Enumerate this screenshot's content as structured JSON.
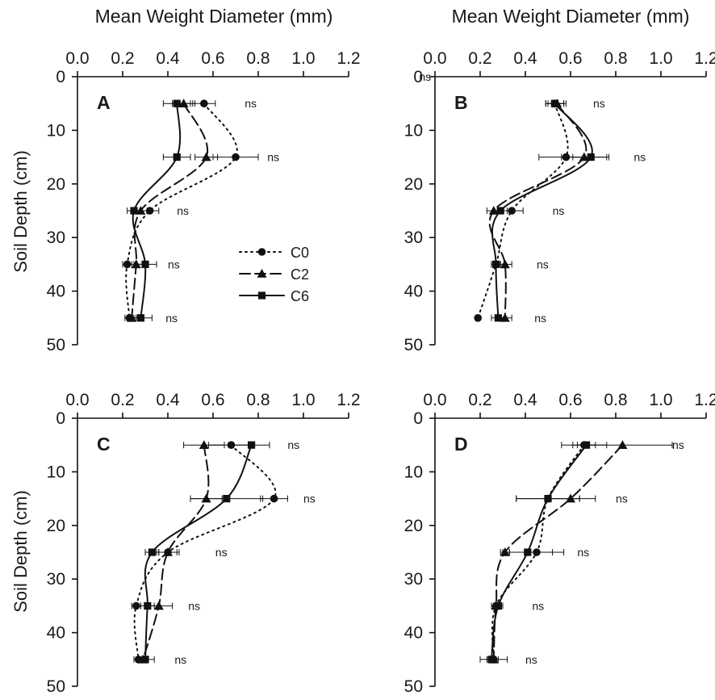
{
  "figure": {
    "x_axis_title": "Mean Weight Diameter (mm)",
    "y_axis_title": "Soil Depth (cm)",
    "legend": [
      "C0",
      "C2",
      "C6"
    ]
  },
  "chart_data": [
    {
      "type": "line",
      "panel": "A",
      "xlabel": "Mean Weight Diameter (mm)",
      "ylabel": "Soil Depth (cm)",
      "xlim": [
        0,
        1.2
      ],
      "ylim": [
        0,
        50
      ],
      "x_ticks": [
        "0.0",
        "0.2",
        "0.4",
        "0.6",
        "0.8",
        "1.0",
        "1.2"
      ],
      "y_ticks": [
        "0",
        "10",
        "20",
        "30",
        "40",
        "50"
      ],
      "depths": [
        5,
        15,
        25,
        35,
        45
      ],
      "series": [
        {
          "name": "C0",
          "values": [
            0.56,
            0.7,
            0.32,
            0.22,
            0.23
          ],
          "errors": [
            0.05,
            0.1,
            0.04,
            0.02,
            0.02
          ]
        },
        {
          "name": "C2",
          "values": [
            0.47,
            0.57,
            0.28,
            0.26,
            0.24
          ],
          "errors": [
            0.05,
            0.05,
            0.03,
            0.03,
            0.02
          ]
        },
        {
          "name": "C6",
          "values": [
            0.44,
            0.44,
            0.25,
            0.3,
            0.28
          ],
          "errors": [
            0.06,
            0.06,
            0.03,
            0.05,
            0.05
          ]
        }
      ],
      "annotations": [
        {
          "depth": 5,
          "x": 0.74,
          "text": "ns"
        },
        {
          "depth": 15,
          "x": 0.84,
          "text": "ns"
        },
        {
          "depth": 25,
          "x": 0.44,
          "text": "ns"
        },
        {
          "depth": 35,
          "x": 0.4,
          "text": "ns"
        },
        {
          "depth": 45,
          "x": 0.39,
          "text": "ns"
        }
      ]
    },
    {
      "type": "line",
      "panel": "B",
      "xlabel": "Mean Weight Diameter (mm)",
      "ylabel": "",
      "xlim": [
        0,
        1.2
      ],
      "ylim": [
        0,
        50
      ],
      "x_ticks": [
        "0.0",
        "0.2",
        "0.4",
        "0.6",
        "0.8",
        "1.0",
        "1.2"
      ],
      "y_ticks": [
        "0",
        "10",
        "20",
        "30",
        "40",
        "50"
      ],
      "depths": [
        5,
        15,
        25,
        35,
        45
      ],
      "series": [
        {
          "name": "C0",
          "values": [
            0.53,
            0.58,
            0.34,
            0.27,
            0.19
          ],
          "errors": [
            0.04,
            0.12,
            0.05,
            0.02,
            0.01
          ]
        },
        {
          "name": "C2",
          "values": [
            0.54,
            0.66,
            0.26,
            0.31,
            0.31
          ],
          "errors": [
            0.04,
            0.1,
            0.03,
            0.03,
            0.03
          ]
        },
        {
          "name": "C6",
          "values": [
            0.53,
            0.69,
            0.29,
            0.27,
            0.28
          ],
          "errors": [
            0.04,
            0.08,
            0.03,
            0.02,
            0.03
          ]
        }
      ],
      "annotations": [
        {
          "depth": 5,
          "x": 0.7,
          "text": "ns"
        },
        {
          "depth": 15,
          "x": 0.88,
          "text": "ns"
        },
        {
          "depth": 25,
          "x": 0.52,
          "text": "ns"
        },
        {
          "depth": 35,
          "x": 0.45,
          "text": "ns"
        },
        {
          "depth": 45,
          "x": 0.44,
          "text": "ns"
        },
        {
          "depth": 0,
          "x": -0.07,
          "text": "ns"
        }
      ]
    },
    {
      "type": "line",
      "panel": "C",
      "xlabel": "",
      "ylabel": "Soil Depth (cm)",
      "xlim": [
        0,
        1.2
      ],
      "ylim": [
        0,
        50
      ],
      "x_ticks": [
        "0.0",
        "0.2",
        "0.4",
        "0.6",
        "0.8",
        "1.0",
        "1.2"
      ],
      "y_ticks": [
        "0",
        "10",
        "20",
        "30",
        "40",
        "50"
      ],
      "depths": [
        5,
        15,
        25,
        35,
        45
      ],
      "series": [
        {
          "name": "C0",
          "values": [
            0.68,
            0.87,
            0.4,
            0.26,
            0.27
          ],
          "errors": [
            0.1,
            0.06,
            0.05,
            0.02,
            0.02
          ]
        },
        {
          "name": "C2",
          "values": [
            0.56,
            0.57,
            0.4,
            0.36,
            0.29
          ],
          "errors": [
            0.09,
            0.07,
            0.04,
            0.06,
            0.02
          ]
        },
        {
          "name": "C6",
          "values": [
            0.77,
            0.66,
            0.33,
            0.31,
            0.3
          ],
          "errors": [
            0.08,
            0.16,
            0.03,
            0.03,
            0.04
          ]
        }
      ],
      "annotations": [
        {
          "depth": 5,
          "x": 0.93,
          "text": "ns"
        },
        {
          "depth": 15,
          "x": 1.0,
          "text": "ns"
        },
        {
          "depth": 25,
          "x": 0.61,
          "text": "ns"
        },
        {
          "depth": 35,
          "x": 0.49,
          "text": "ns"
        },
        {
          "depth": 45,
          "x": 0.43,
          "text": "ns"
        }
      ]
    },
    {
      "type": "line",
      "panel": "D",
      "xlabel": "",
      "ylabel": "",
      "xlim": [
        0,
        1.2
      ],
      "ylim": [
        0,
        50
      ],
      "x_ticks": [
        "0.0",
        "0.2",
        "0.4",
        "0.6",
        "0.8",
        "1.0",
        "1.2"
      ],
      "y_ticks": [
        "0",
        "10",
        "20",
        "30",
        "40",
        "50"
      ],
      "depths": [
        5,
        15,
        25,
        35,
        45
      ],
      "series": [
        {
          "name": "C0",
          "values": [
            0.66,
            0.5,
            0.45,
            0.27,
            0.26
          ],
          "errors": [
            0.1,
            0.14,
            0.12,
            0.02,
            0.02
          ]
        },
        {
          "name": "C2",
          "values": [
            0.83,
            0.6,
            0.31,
            0.27,
            0.26
          ],
          "errors": [
            0.22,
            0.11,
            0.02,
            0.02,
            0.06
          ]
        },
        {
          "name": "C6",
          "values": [
            0.67,
            0.5,
            0.41,
            0.28,
            0.25
          ],
          "errors": [
            0.04,
            0.14,
            0.11,
            0.02,
            0.02
          ]
        }
      ],
      "annotations": [
        {
          "depth": 5,
          "x": 1.05,
          "text": "ns"
        },
        {
          "depth": 15,
          "x": 0.8,
          "text": "ns"
        },
        {
          "depth": 25,
          "x": 0.63,
          "text": "ns"
        },
        {
          "depth": 35,
          "x": 0.43,
          "text": "ns"
        },
        {
          "depth": 45,
          "x": 0.4,
          "text": "ns"
        }
      ]
    }
  ]
}
